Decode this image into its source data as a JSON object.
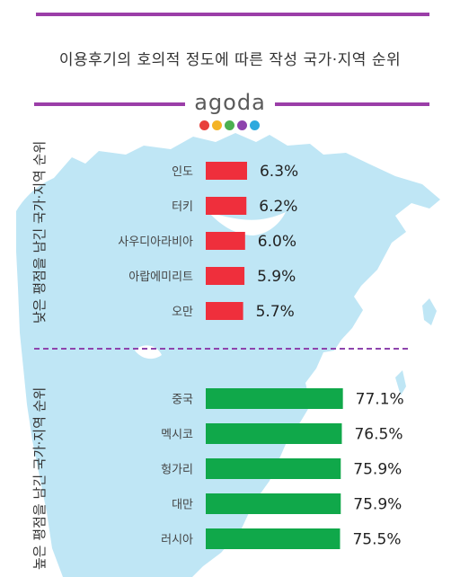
{
  "title": "이용후기의 호의적 정도에 따른 작성 국가·지역 순위",
  "brand": {
    "name": "agoda",
    "dot_colors": [
      "#e8403b",
      "#f4b426",
      "#4cb050",
      "#8e44ad",
      "#2ea9de"
    ]
  },
  "colors": {
    "accent_rule": "#9b3ea8",
    "low_bar": "#ef2f3c",
    "high_bar": "#10a84a",
    "map": "#bfe6f5",
    "divider": "#8e44ad"
  },
  "chart_data": {
    "type": "bar",
    "orientation": "horizontal",
    "unit": "%",
    "groups": [
      {
        "label": "낮은 평점을 남긴 국가·지역 순위",
        "color": "#ef2f3c",
        "categories": [
          "인도",
          "터키",
          "사우디아라비아",
          "아랍에미리트",
          "오만"
        ],
        "values": [
          6.3,
          6.2,
          6.0,
          5.9,
          5.7
        ],
        "value_labels": [
          "6.3%",
          "6.2%",
          "6.0%",
          "5.9%",
          "5.7%"
        ]
      },
      {
        "label": "높은 평점을 남긴 국가·지역 순위",
        "color": "#10a84a",
        "categories": [
          "중국",
          "멕시코",
          "헝가리",
          "대만",
          "러시아"
        ],
        "values": [
          77.1,
          76.5,
          75.9,
          75.9,
          75.5
        ],
        "value_labels": [
          "77.1%",
          "76.5%",
          "75.9%",
          "75.9%",
          "75.5%"
        ]
      }
    ]
  }
}
